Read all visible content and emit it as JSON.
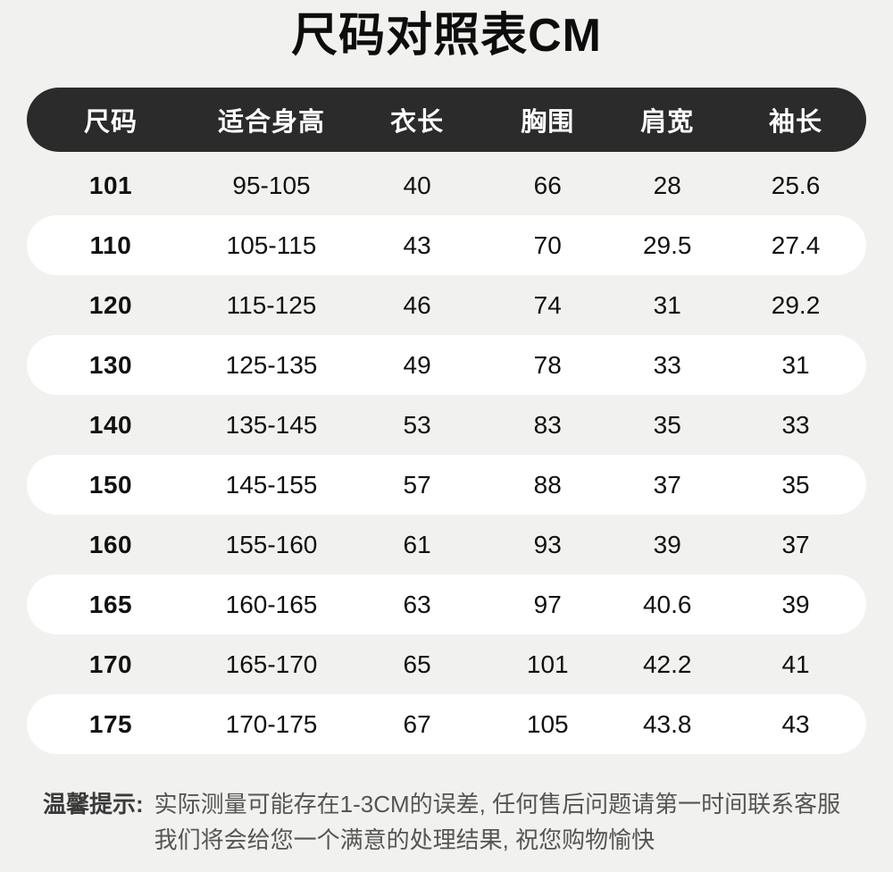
{
  "title": "尺码对照表CM",
  "table": {
    "headers": [
      "尺码",
      "适合身高",
      "衣长",
      "胸围",
      "肩宽",
      "袖长"
    ],
    "rows": [
      {
        "size": "101",
        "height": "95-105",
        "length": "40",
        "chest": "66",
        "shoulder": "28",
        "sleeve": "25.6"
      },
      {
        "size": "110",
        "height": "105-115",
        "length": "43",
        "chest": "70",
        "shoulder": "29.5",
        "sleeve": "27.4"
      },
      {
        "size": "120",
        "height": "115-125",
        "length": "46",
        "chest": "74",
        "shoulder": "31",
        "sleeve": "29.2"
      },
      {
        "size": "130",
        "height": "125-135",
        "length": "49",
        "chest": "78",
        "shoulder": "33",
        "sleeve": "31"
      },
      {
        "size": "140",
        "height": "135-145",
        "length": "53",
        "chest": "83",
        "shoulder": "35",
        "sleeve": "33"
      },
      {
        "size": "150",
        "height": "145-155",
        "length": "57",
        "chest": "88",
        "shoulder": "37",
        "sleeve": "35"
      },
      {
        "size": "160",
        "height": "155-160",
        "length": "61",
        "chest": "93",
        "shoulder": "39",
        "sleeve": "37"
      },
      {
        "size": "165",
        "height": "160-165",
        "length": "63",
        "chest": "97",
        "shoulder": "40.6",
        "sleeve": "39"
      },
      {
        "size": "170",
        "height": "165-170",
        "length": "65",
        "chest": "101",
        "shoulder": "42.2",
        "sleeve": "41"
      },
      {
        "size": "175",
        "height": "170-175",
        "length": "67",
        "chest": "105",
        "shoulder": "43.8",
        "sleeve": "43"
      }
    ]
  },
  "note": {
    "label": "温馨提示:",
    "line1": "实际测量可能存在1-3CM的误差, 任何售后问题请第一时间联系客服",
    "line2": "我们将会给您一个满意的处理结果, 祝您购物愉快"
  },
  "colors": {
    "page_bg": "#f1f1ef",
    "header_bg": "#2b2b2b",
    "header_text": "#ffffff",
    "row_alt_bg": "#ffffff",
    "body_text": "#111111",
    "note_text": "#555555"
  }
}
